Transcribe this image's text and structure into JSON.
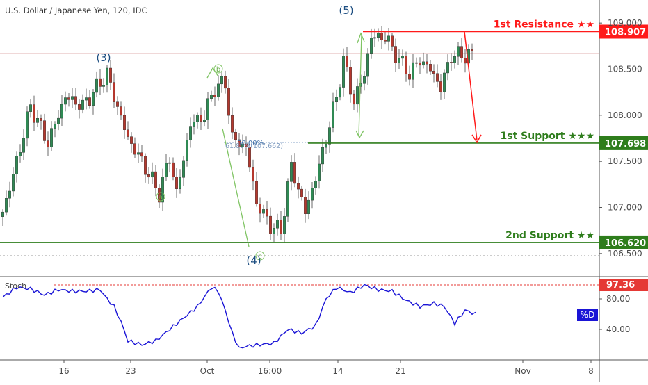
{
  "header": {
    "title": "U.S. Dollar / Japanese Yen, 120, IDC"
  },
  "chart_data": {
    "type": "candlestick",
    "title": "U.S. Dollar / Japanese Yen, 120, IDC",
    "price_axis": {
      "ticks": [
        "109.000",
        "108.500",
        "108.000",
        "107.500",
        "107.000",
        "106.500"
      ],
      "tick_values": [
        109.0,
        108.5,
        108.0,
        107.5,
        107.0,
        106.5
      ],
      "range": [
        106.25,
        109.25
      ]
    },
    "time_axis": {
      "ticks": [
        "16",
        "23",
        "Oct",
        "16:00",
        "14",
        "21",
        "Nov",
        "8"
      ]
    },
    "price_anchors": [
      [
        0,
        106.95
      ],
      [
        3,
        107.35
      ],
      [
        8,
        108.1
      ],
      [
        13,
        107.7
      ],
      [
        18,
        108.2
      ],
      [
        23,
        108.1
      ],
      [
        30,
        108.45
      ],
      [
        32,
        108.2
      ],
      [
        36,
        107.75
      ],
      [
        40,
        107.5
      ],
      [
        45,
        107.15
      ],
      [
        48,
        107.55
      ],
      [
        50,
        107.15
      ],
      [
        54,
        107.9
      ],
      [
        58,
        108.0
      ],
      [
        61,
        108.3
      ],
      [
        64,
        108.35
      ],
      [
        66,
        107.75
      ],
      [
        70,
        107.65
      ],
      [
        73,
        107.05
      ],
      [
        77,
        106.8
      ],
      [
        80,
        106.75
      ],
      [
        83,
        107.45
      ],
      [
        87,
        106.95
      ],
      [
        91,
        107.45
      ],
      [
        96,
        108.2
      ],
      [
        98,
        108.6
      ],
      [
        101,
        108.15
      ],
      [
        104,
        108.45
      ],
      [
        106,
        108.85
      ],
      [
        110,
        108.85
      ],
      [
        114,
        108.6
      ],
      [
        117,
        108.45
      ],
      [
        120,
        108.6
      ],
      [
        123,
        108.5
      ],
      [
        126,
        108.3
      ],
      [
        129,
        108.65
      ],
      [
        133,
        108.65
      ]
    ],
    "levels": [
      {
        "name": "1st Resistance ★★",
        "value": "108.907",
        "price": 108.907,
        "color": "#ff1a1a"
      },
      {
        "name": "1st Support ★★★",
        "value": "107.698",
        "price": 107.698,
        "color": "#2e7d1c"
      },
      {
        "name": "2nd Support ★★",
        "value": "106.620",
        "price": 106.62,
        "color": "#2e7d1c"
      }
    ],
    "wave_labels": [
      {
        "text": "(3)",
        "index": 29,
        "price": 108.8
      },
      {
        "text": "(4)",
        "index": 72,
        "price": 106.4
      },
      {
        "text": "(5)",
        "index": 100,
        "price": 109.1
      }
    ],
    "subwave_labels": [
      "b",
      "a",
      "c"
    ],
    "fibonacci": {
      "label": "50.00%",
      "sublabel": "61.80%(107.662)"
    },
    "stochastic": {
      "label": "Stoch",
      "series_name": "%D",
      "upper_value": "97.36",
      "ticks": [
        "80.00",
        "40.00"
      ],
      "tick_values": [
        80,
        40
      ],
      "anchors": [
        [
          0,
          82
        ],
        [
          4,
          95
        ],
        [
          8,
          93
        ],
        [
          12,
          85
        ],
        [
          16,
          92
        ],
        [
          20,
          90
        ],
        [
          24,
          90
        ],
        [
          28,
          92
        ],
        [
          30,
          80
        ],
        [
          32,
          70
        ],
        [
          34,
          50
        ],
        [
          36,
          25
        ],
        [
          40,
          20
        ],
        [
          44,
          25
        ],
        [
          48,
          40
        ],
        [
          52,
          55
        ],
        [
          56,
          70
        ],
        [
          60,
          95
        ],
        [
          62,
          90
        ],
        [
          64,
          65
        ],
        [
          66,
          35
        ],
        [
          68,
          15
        ],
        [
          70,
          18
        ],
        [
          74,
          20
        ],
        [
          78,
          22
        ],
        [
          82,
          40
        ],
        [
          86,
          35
        ],
        [
          90,
          45
        ],
        [
          93,
          80
        ],
        [
          96,
          95
        ],
        [
          100,
          88
        ],
        [
          104,
          98
        ],
        [
          108,
          92
        ],
        [
          112,
          90
        ],
        [
          116,
          78
        ],
        [
          120,
          70
        ],
        [
          124,
          74
        ],
        [
          127,
          70
        ],
        [
          130,
          48
        ],
        [
          133,
          65
        ],
        [
          136,
          60
        ]
      ]
    }
  }
}
